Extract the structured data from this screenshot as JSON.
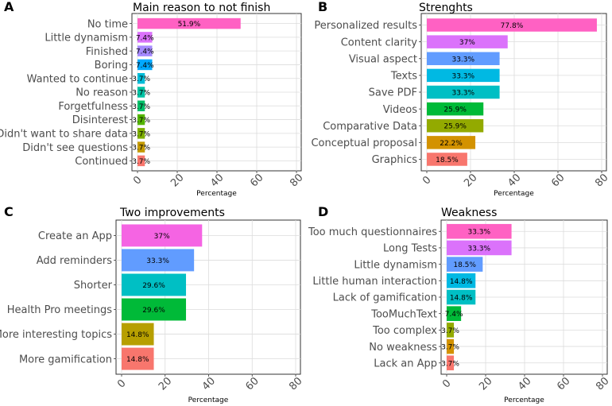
{
  "chart_data": [
    {
      "panel": "A",
      "type": "bar",
      "orientation": "horizontal",
      "title": "Main reason to not finish",
      "xlabel": "Percentage",
      "xlim": [
        0,
        80
      ],
      "xticks": [
        "0",
        "20",
        "40",
        "60",
        "80"
      ],
      "categories": [
        "No time",
        "Little dynamism",
        "Finished",
        "Boring",
        "Wanted to continue",
        "No reason",
        "Forgetfulness",
        "Disinterest",
        "Didn't want to share data",
        "Didn't see questions",
        "Continued"
      ],
      "values": [
        51.9,
        7.4,
        7.4,
        7.4,
        3.7,
        3.7,
        3.7,
        3.7,
        3.7,
        3.7,
        3.7
      ],
      "labels": [
        "51.9%",
        "7.4%",
        "7.4%",
        "7.4%",
        "3.7%",
        "3.7%",
        "3.7%",
        "3.7%",
        "3.7%",
        "3.7%",
        "3.7%"
      ],
      "colors": [
        "#FF61C3",
        "#DB72FB",
        "#A58AFF",
        "#00A9FF",
        "#00BCD8",
        "#00C1A3",
        "#00BE67",
        "#53B400",
        "#7CAE00",
        "#C49A00",
        "#F8766D"
      ]
    },
    {
      "panel": "B",
      "type": "bar",
      "orientation": "horizontal",
      "title": "Strenghts",
      "xlabel": "Percentage",
      "xlim": [
        0,
        80
      ],
      "xticks": [
        "0",
        "20",
        "40",
        "60",
        "80"
      ],
      "categories": [
        "Personalized results",
        "Content clarity",
        "Visual aspect",
        "Texts",
        "Save PDF",
        "Videos",
        "Comparative Data",
        "Conceptual proposal",
        "Graphics"
      ],
      "values": [
        77.8,
        37,
        33.3,
        33.3,
        33.3,
        25.9,
        25.9,
        22.2,
        18.5
      ],
      "labels": [
        "77.8%",
        "37%",
        "33.3%",
        "33.3%",
        "33.3%",
        "25.9%",
        "25.9%",
        "22.2%",
        "18.5%"
      ],
      "colors": [
        "#FF61C3",
        "#DB72FB",
        "#619CFF",
        "#00B9E3",
        "#00BFC4",
        "#00BA38",
        "#93AA00",
        "#D39200",
        "#F8766D"
      ]
    },
    {
      "panel": "C",
      "type": "bar",
      "orientation": "horizontal",
      "title": "Two improvements",
      "xlabel": "Percentage",
      "xlim": [
        0,
        80
      ],
      "xticks": [
        "0",
        "20",
        "40",
        "60",
        "80"
      ],
      "categories": [
        "Create an App",
        "Add reminders",
        "Shorter",
        "Health Pro meetings",
        "More interesting topics",
        "More gamification"
      ],
      "values": [
        37,
        33.3,
        29.6,
        29.6,
        14.8,
        14.8
      ],
      "labels": [
        "37%",
        "33.3%",
        "29.6%",
        "29.6%",
        "14.8%",
        "14.8%"
      ],
      "colors": [
        "#F564E3",
        "#619CFF",
        "#00BFC4",
        "#00BA38",
        "#B79F00",
        "#F8766D"
      ]
    },
    {
      "panel": "D",
      "type": "bar",
      "orientation": "horizontal",
      "title": "Weakness",
      "xlabel": "Percentage",
      "xlim": [
        0,
        80
      ],
      "xticks": [
        "0",
        "20",
        "40",
        "60",
        "80"
      ],
      "categories": [
        "Too much questionnaires",
        "Long Tests",
        "Little dynamism",
        "Little human interaction",
        "Lack of gamification",
        "TooMuchText",
        "Too complex",
        "No weakness",
        "Lack an App"
      ],
      "values": [
        33.3,
        33.3,
        18.5,
        14.8,
        14.8,
        7.4,
        3.7,
        3.7,
        3.7
      ],
      "labels": [
        "33.3%",
        "33.3%",
        "18.5%",
        "14.8%",
        "14.8%",
        "7.4%",
        "3.7%",
        "3.7%",
        "3.7%"
      ],
      "colors": [
        "#FF61C3",
        "#DB72FB",
        "#619CFF",
        "#00B9E3",
        "#00BFC4",
        "#00BA38",
        "#93AA00",
        "#D39200",
        "#F8766D"
      ]
    }
  ]
}
